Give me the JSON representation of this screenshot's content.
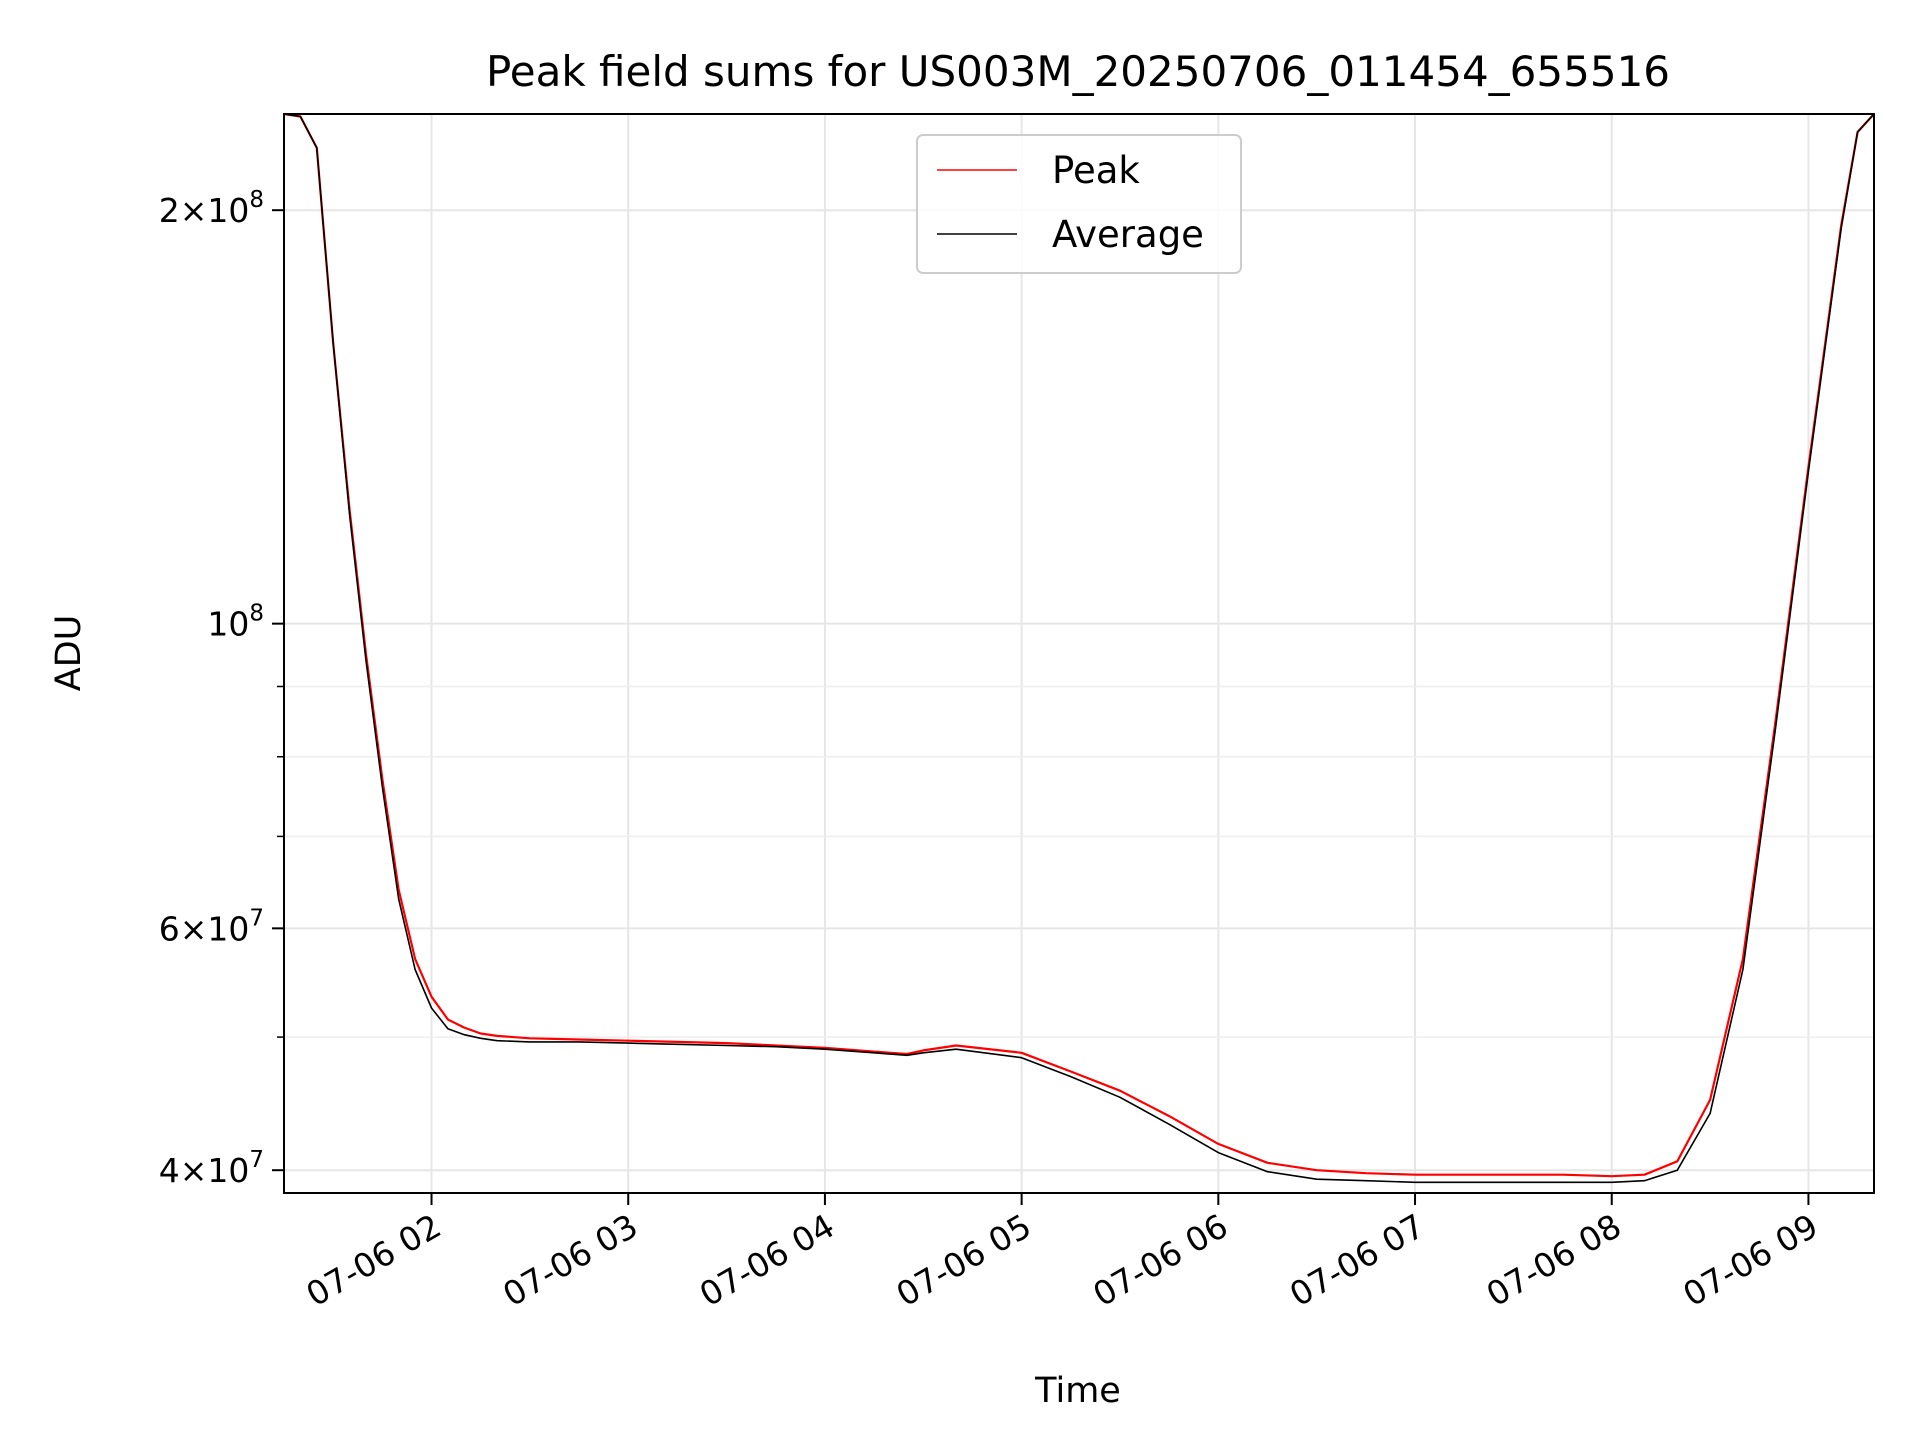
{
  "chart_data": {
    "type": "line",
    "title": "Peak field sums for US003M_20250706_011454_655516",
    "xlabel": "Time",
    "ylabel": "ADU",
    "yscale": "log",
    "xlim": [
      "2025-07-06 01:15",
      "2025-07-06 09:20"
    ],
    "ylim": [
      38500000,
      235000000
    ],
    "grid": true,
    "legend": {
      "placement": "top-center",
      "entries": [
        "Peak",
        "Average"
      ]
    },
    "x_ticks": [
      {
        "time": "2025-07-06 02:00",
        "label": "07-06 02"
      },
      {
        "time": "2025-07-06 03:00",
        "label": "07-06 03"
      },
      {
        "time": "2025-07-06 04:00",
        "label": "07-06 04"
      },
      {
        "time": "2025-07-06 05:00",
        "label": "07-06 05"
      },
      {
        "time": "2025-07-06 06:00",
        "label": "07-06 06"
      },
      {
        "time": "2025-07-06 07:00",
        "label": "07-06 07"
      },
      {
        "time": "2025-07-06 08:00",
        "label": "07-06 08"
      },
      {
        "time": "2025-07-06 09:00",
        "label": "07-06 09"
      }
    ],
    "y_major_ticks": [
      {
        "value": 200000000,
        "mantissa": "2",
        "exponent": "8"
      },
      {
        "value": 100000000,
        "mantissa": "",
        "exponent": "8"
      },
      {
        "value": 60000000,
        "mantissa": "6",
        "exponent": "7"
      },
      {
        "value": 40000000,
        "mantissa": "4",
        "exponent": "7"
      }
    ],
    "y_minor_ticks": [
      50000000,
      70000000,
      80000000,
      90000000
    ],
    "series": [
      {
        "name": "Peak",
        "color": "#ff0000",
        "x": [
          "2025-07-06 01:15",
          "2025-07-06 01:20",
          "2025-07-06 01:25",
          "2025-07-06 01:30",
          "2025-07-06 01:35",
          "2025-07-06 01:40",
          "2025-07-06 01:45",
          "2025-07-06 01:50",
          "2025-07-06 01:55",
          "2025-07-06 02:00",
          "2025-07-06 02:05",
          "2025-07-06 02:10",
          "2025-07-06 02:15",
          "2025-07-06 02:20",
          "2025-07-06 02:30",
          "2025-07-06 02:45",
          "2025-07-06 03:00",
          "2025-07-06 03:15",
          "2025-07-06 03:30",
          "2025-07-06 03:45",
          "2025-07-06 04:00",
          "2025-07-06 04:15",
          "2025-07-06 04:25",
          "2025-07-06 04:30",
          "2025-07-06 04:40",
          "2025-07-06 05:00",
          "2025-07-06 05:15",
          "2025-07-06 05:30",
          "2025-07-06 05:45",
          "2025-07-06 06:00",
          "2025-07-06 06:15",
          "2025-07-06 06:30",
          "2025-07-06 06:45",
          "2025-07-06 07:00",
          "2025-07-06 07:15",
          "2025-07-06 07:30",
          "2025-07-06 07:45",
          "2025-07-06 08:00",
          "2025-07-06 08:10",
          "2025-07-06 08:20",
          "2025-07-06 08:30",
          "2025-07-06 08:40",
          "2025-07-06 08:50",
          "2025-07-06 09:00",
          "2025-07-06 09:10",
          "2025-07-06 09:15",
          "2025-07-06 09:20"
        ],
        "y": [
          235000000,
          234000000,
          222000000,
          160000000,
          121000000,
          95000000,
          77000000,
          64000000,
          57000000,
          53500000,
          51500000,
          50800000,
          50300000,
          50100000,
          49900000,
          49800000,
          49700000,
          49600000,
          49500000,
          49300000,
          49100000,
          48800000,
          48600000,
          48900000,
          49300000,
          48700000,
          47200000,
          45700000,
          43800000,
          41800000,
          40500000,
          40000000,
          39800000,
          39700000,
          39700000,
          39700000,
          39700000,
          39600000,
          39700000,
          40600000,
          45000000,
          57000000,
          85000000,
          130000000,
          195000000,
          228000000,
          235000000
        ]
      },
      {
        "name": "Average",
        "color": "#000000",
        "x": [
          "2025-07-06 01:15",
          "2025-07-06 01:20",
          "2025-07-06 01:25",
          "2025-07-06 01:30",
          "2025-07-06 01:35",
          "2025-07-06 01:40",
          "2025-07-06 01:45",
          "2025-07-06 01:50",
          "2025-07-06 01:55",
          "2025-07-06 02:00",
          "2025-07-06 02:05",
          "2025-07-06 02:10",
          "2025-07-06 02:15",
          "2025-07-06 02:20",
          "2025-07-06 02:30",
          "2025-07-06 02:45",
          "2025-07-06 03:00",
          "2025-07-06 03:15",
          "2025-07-06 03:30",
          "2025-07-06 03:45",
          "2025-07-06 04:00",
          "2025-07-06 04:15",
          "2025-07-06 04:25",
          "2025-07-06 04:30",
          "2025-07-06 04:40",
          "2025-07-06 05:00",
          "2025-07-06 05:15",
          "2025-07-06 05:30",
          "2025-07-06 05:45",
          "2025-07-06 06:00",
          "2025-07-06 06:15",
          "2025-07-06 06:30",
          "2025-07-06 06:45",
          "2025-07-06 07:00",
          "2025-07-06 07:15",
          "2025-07-06 07:30",
          "2025-07-06 07:45",
          "2025-07-06 08:00",
          "2025-07-06 08:10",
          "2025-07-06 08:20",
          "2025-07-06 08:30",
          "2025-07-06 08:40",
          "2025-07-06 08:50",
          "2025-07-06 09:00",
          "2025-07-06 09:10",
          "2025-07-06 09:15",
          "2025-07-06 09:20"
        ],
        "y": [
          235000000,
          234000000,
          222000000,
          160000000,
          120000000,
          94000000,
          76000000,
          63000000,
          56000000,
          52500000,
          50700000,
          50200000,
          49900000,
          49700000,
          49600000,
          49600000,
          49500000,
          49400000,
          49300000,
          49200000,
          49000000,
          48700000,
          48500000,
          48700000,
          49000000,
          48300000,
          46800000,
          45200000,
          43200000,
          41200000,
          39900000,
          39400000,
          39300000,
          39200000,
          39200000,
          39200000,
          39200000,
          39200000,
          39300000,
          40000000,
          44000000,
          56000000,
          84000000,
          129000000,
          194000000,
          228000000,
          235000000
        ]
      }
    ]
  }
}
